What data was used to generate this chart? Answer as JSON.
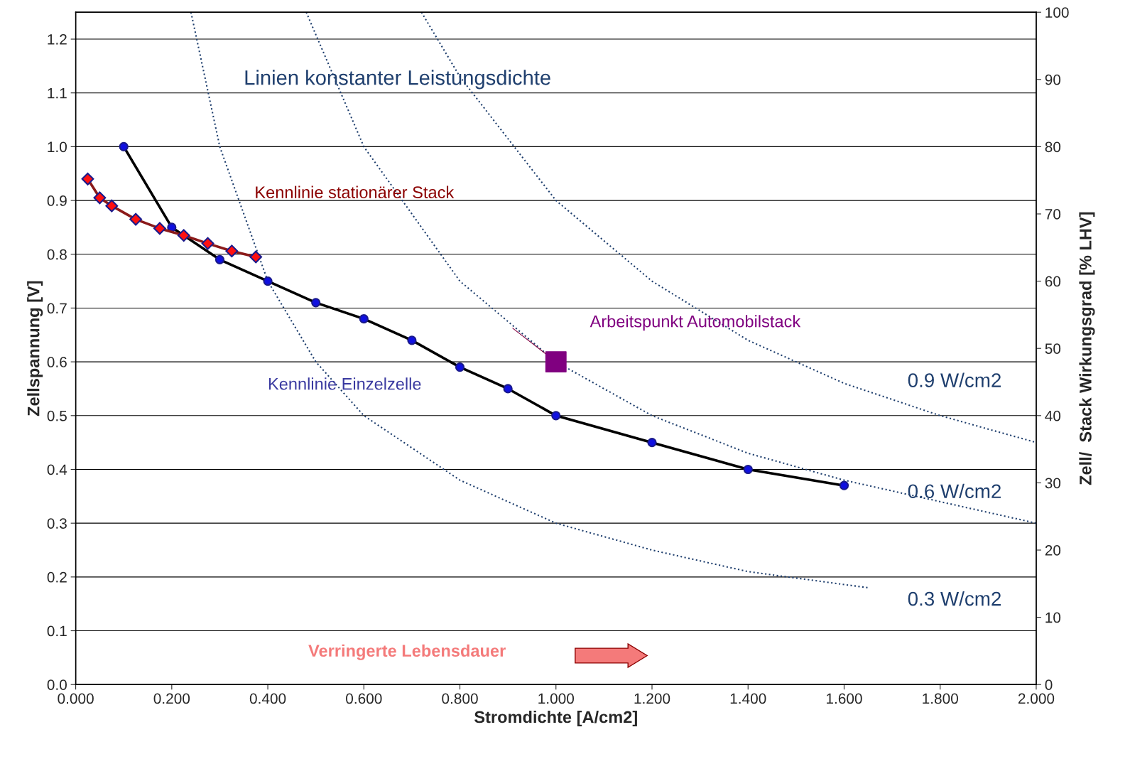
{
  "chart_data": {
    "type": "line",
    "xlabel": "Stromdichte [A/cm2]",
    "ylabel": "Zellspannung [V]",
    "y2label": "Zell/  Stack Wirkungsgrad [% LHV]",
    "xlim": [
      0,
      2.0
    ],
    "xticks": [
      {
        "value": 0,
        "label": "0.000"
      },
      {
        "value": 0.2,
        "label": "0.200"
      },
      {
        "value": 0.4,
        "label": "0.400"
      },
      {
        "value": 0.6,
        "label": "0.600"
      },
      {
        "value": 0.8,
        "label": "0.800"
      },
      {
        "value": 1.0,
        "label": "1.000"
      },
      {
        "value": 1.2,
        "label": "1.200"
      },
      {
        "value": 1.4,
        "label": "1.400"
      },
      {
        "value": 1.6,
        "label": "1.600"
      },
      {
        "value": 1.8,
        "label": "1.800"
      },
      {
        "value": 2.0,
        "label": "2.000"
      }
    ],
    "ylim": [
      0,
      1.25
    ],
    "yticks": [
      {
        "value": 0,
        "label": "0.0"
      },
      {
        "value": 0.1,
        "label": "0.1"
      },
      {
        "value": 0.2,
        "label": "0.2"
      },
      {
        "value": 0.3,
        "label": "0.3"
      },
      {
        "value": 0.4,
        "label": "0.4"
      },
      {
        "value": 0.5,
        "label": "0.5"
      },
      {
        "value": 0.6,
        "label": "0.6"
      },
      {
        "value": 0.7,
        "label": "0.7"
      },
      {
        "value": 0.8,
        "label": "0.8"
      },
      {
        "value": 0.9,
        "label": "0.9"
      },
      {
        "value": 1.0,
        "label": "1.0"
      },
      {
        "value": 1.1,
        "label": "1.1"
      },
      {
        "value": 1.2,
        "label": "1.2"
      }
    ],
    "y2lim": [
      0,
      100
    ],
    "y2ticks": [
      0,
      10,
      20,
      30,
      40,
      50,
      60,
      70,
      80,
      90,
      100
    ],
    "grid": "y",
    "series": [
      {
        "line_style": "dotted",
        "marker": "none",
        "color": "#1f3f6e",
        "x": [
          0.24,
          0.3,
          0.4,
          0.5,
          0.6,
          0.8,
          1.0,
          1.2,
          1.4,
          1.65
        ],
        "values": [
          1.25,
          1.0,
          0.75,
          0.6,
          0.5,
          0.38,
          0.3,
          0.25,
          0.21,
          0.18
        ]
      },
      {
        "line_style": "dotted",
        "marker": "none",
        "color": "#1f3f6e",
        "x": [
          0.48,
          0.6,
          0.8,
          1.0,
          1.2,
          1.4,
          1.6,
          2.0
        ],
        "values": [
          1.25,
          1.0,
          0.75,
          0.6,
          0.5,
          0.43,
          0.38,
          0.3
        ]
      },
      {
        "line_style": "dotted",
        "marker": "none",
        "color": "#1f3f6e",
        "x": [
          0.72,
          0.8,
          1.0,
          1.2,
          1.4,
          1.6,
          1.8,
          2.0
        ],
        "values": [
          1.25,
          1.13,
          0.9,
          0.75,
          0.64,
          0.56,
          0.5,
          0.45
        ]
      },
      {
        "line_style": "solid",
        "marker": "circle",
        "color": "#000000",
        "x": [
          0.1,
          0.2,
          0.3,
          0.4,
          0.5,
          0.6,
          0.7,
          0.8,
          0.9,
          1.0,
          1.2,
          1.4,
          1.6
        ],
        "values": [
          1.0,
          0.85,
          0.79,
          0.75,
          0.71,
          0.68,
          0.64,
          0.59,
          0.55,
          0.5,
          0.45,
          0.4,
          0.37
        ]
      },
      {
        "line_style": "solid",
        "marker": "diamond",
        "color": "#8b1a1a",
        "x": [
          0.025,
          0.05,
          0.075,
          0.125,
          0.175,
          0.225,
          0.275,
          0.325,
          0.375
        ],
        "values": [
          0.94,
          0.905,
          0.89,
          0.865,
          0.848,
          0.835,
          0.82,
          0.806,
          0.795
        ]
      },
      {
        "type": "scatter",
        "marker": "square",
        "color": "#800080",
        "x": [
          1.0
        ],
        "values": [
          0.6
        ]
      }
    ],
    "annotations": [
      "Linien konstanter Leistungsdichte",
      "Kennlinie stationärer Stack",
      "Kennlinie Einzelzelle",
      "Arbeitspunkt Automobilstack",
      "0.9 W/cm2",
      "0.6 W/cm2",
      "0.3 W/cm2",
      "Verringerte Lebensdauer"
    ]
  }
}
